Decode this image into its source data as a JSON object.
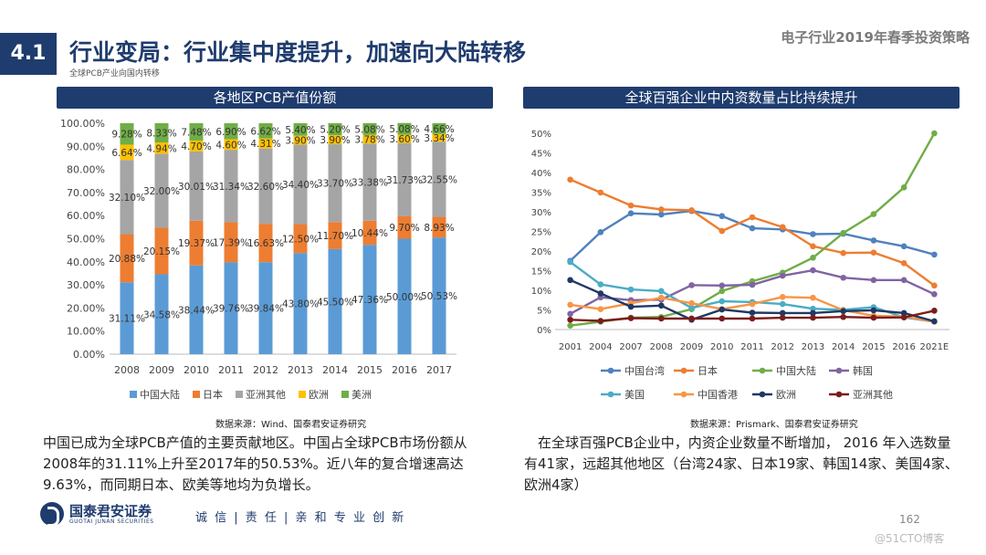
{
  "header": {
    "section": "4.1",
    "title": "行业变局：行业集中度提升，加速向大陆转移",
    "subtitle": "全球PCB产业向国内转移",
    "report": "电子行业2019年春季投资策略"
  },
  "colors": {
    "brand": "#1f3c6e",
    "cn_mainland": "#5b9bd5",
    "japan": "#ed7d31",
    "other_asia": "#a5a5a5",
    "europe": "#ffc000",
    "america": "#70ad47",
    "taiwan": "#4f81bd",
    "korea": "#8064a2",
    "usa_line": "#4bacc6",
    "hk": "#f79646",
    "eu_line": "#1f3864",
    "other_asia_line": "#7b1c1c"
  },
  "left": {
    "banner": "各地区PCB产值份额",
    "source": "数据来源：Wind、国泰君安证券研究",
    "paragraph": "中国已成为全球PCB产值的主要贡献地区。中国占全球PCB市场份额从2008年的31.11%上升至2017年的50.53%。近八年的复合增速高达9.63%，而同期日本、欧美等地均为负增长。"
  },
  "right": {
    "banner": "全球百强企业中内资数量占比持续提升",
    "source": "数据来源：Prismark、国泰君安证券研究",
    "paragraph": "在全球百强PCB企业中，内资企业数量不断增加， 2016 年入选数量有41家，远超其他地区（台湾24家、日本19家、韩国14家、美国4家、欧洲4家）"
  },
  "footer": {
    "logo_cn": "国泰君安证券",
    "logo_en": "GUOTAI JUNAN SECURITIES",
    "slogan": "诚 信 | 责 任 | 亲 和   专 业   创 新",
    "page": "162",
    "watermark": "@51CTO博客"
  },
  "chart_data": [
    {
      "type": "bar",
      "stacked": true,
      "categories": [
        "2008",
        "2009",
        "2010",
        "2011",
        "2012",
        "2013",
        "2014",
        "2015",
        "2016",
        "2017"
      ],
      "ylim": [
        0,
        100
      ],
      "yticks": [
        "0.00%",
        "10.00%",
        "20.00%",
        "30.00%",
        "40.00%",
        "50.00%",
        "60.00%",
        "70.00%",
        "80.00%",
        "90.00%",
        "100.00%"
      ],
      "series": [
        {
          "name": "中国大陆",
          "values": [
            31.11,
            34.58,
            38.44,
            39.76,
            39.84,
            43.8,
            45.5,
            47.36,
            50.0,
            50.53
          ],
          "labels": [
            "31.11%",
            "34.58%",
            "38.44%",
            "39.76%",
            "39.84%",
            "43.80%",
            "45.50%",
            "47.36%",
            "50.00%",
            "50.53%"
          ]
        },
        {
          "name": "日本",
          "values": [
            20.88,
            20.15,
            19.37,
            17.39,
            16.63,
            12.5,
            11.7,
            10.44,
            9.7,
            8.93
          ],
          "labels": [
            "20.88%",
            "20.15%",
            "19.37%",
            "17.39%",
            "16.63%",
            "12.50%",
            "11.70%",
            "10.44%",
            "9.70%",
            "8.93%"
          ]
        },
        {
          "name": "亚洲其他",
          "values": [
            32.1,
            32.0,
            30.01,
            31.34,
            32.6,
            34.4,
            33.7,
            33.38,
            31.73,
            32.55
          ],
          "labels": [
            "32.10%",
            "32.00%",
            "30.01%",
            "31.34%",
            "32.60%",
            "34.40%",
            "33.70%",
            "33.38%",
            "31.73%",
            "32.55%"
          ]
        },
        {
          "name": "欧洲",
          "values": [
            6.64,
            4.94,
            4.7,
            4.6,
            4.31,
            3.9,
            3.9,
            3.78,
            3.6,
            3.34
          ],
          "labels": [
            "6.64%",
            "4.94%",
            "4.70%",
            "4.60%",
            "4.31%",
            "3.90%",
            "3.90%",
            "3.78%",
            "3.60%",
            "3.34%"
          ]
        },
        {
          "name": "美洲",
          "values": [
            9.28,
            8.33,
            7.48,
            6.9,
            6.62,
            5.4,
            5.2,
            5.08,
            5.08,
            4.66
          ],
          "labels": [
            "9.28%",
            "8.33%",
            "7.48%",
            "6.90%",
            "6.62%",
            "5.40%",
            "5.20%",
            "5.08%",
            "5.08%",
            "4.66%"
          ]
        }
      ],
      "legend_position": "bottom"
    },
    {
      "type": "line",
      "categories": [
        "2001",
        "2004",
        "2007",
        "2008",
        "2009",
        "2010",
        "2011",
        "2012",
        "2013",
        "2014",
        "2015",
        "2016",
        "2021E"
      ],
      "ylim": [
        0,
        50
      ],
      "yticks": [
        "0%",
        "5%",
        "10%",
        "15%",
        "20%",
        "25%",
        "30%",
        "35%",
        "40%",
        "45%",
        "50%"
      ],
      "series": [
        {
          "name": "中国台湾",
          "values": [
            17.5,
            24.8,
            29.6,
            29.3,
            30.2,
            28.9,
            25.8,
            25.5,
            24.3,
            24.4,
            22.7,
            21.2,
            19.1
          ]
        },
        {
          "name": "日本",
          "values": [
            38.2,
            34.9,
            31.6,
            30.6,
            30.4,
            25.1,
            28.6,
            26.1,
            21.2,
            19.5,
            19.6,
            16.9,
            11.2
          ]
        },
        {
          "name": "中国大陆",
          "values": [
            1.0,
            2.0,
            3.0,
            3.2,
            5.2,
            9.8,
            12.3,
            14.5,
            18.3,
            24.6,
            29.4,
            36.2,
            50.0
          ]
        },
        {
          "name": "韩国",
          "values": [
            4.0,
            8.2,
            7.5,
            7.6,
            11.3,
            11.2,
            11.4,
            13.7,
            15.1,
            13.2,
            12.6,
            12.6,
            9.0
          ]
        },
        {
          "name": "美国",
          "values": [
            17.2,
            11.5,
            10.2,
            9.8,
            5.5,
            7.2,
            7.0,
            6.5,
            5.3,
            5.0,
            5.7,
            3.1,
            2.0
          ]
        },
        {
          "name": "中国香港",
          "values": [
            6.3,
            5.2,
            6.7,
            8.1,
            6.7,
            5.2,
            6.5,
            8.3,
            8.1,
            4.9,
            3.5,
            3.3,
            2.0
          ]
        },
        {
          "name": "欧洲",
          "values": [
            12.6,
            9.2,
            5.8,
            6.1,
            2.5,
            5.1,
            4.3,
            4.2,
            4.2,
            4.7,
            4.9,
            4.2,
            2.1
          ]
        },
        {
          "name": "亚洲其他",
          "values": [
            2.5,
            2.2,
            2.9,
            2.8,
            2.8,
            2.8,
            2.8,
            3.0,
            3.0,
            3.2,
            3.0,
            3.1,
            4.8
          ]
        }
      ],
      "legend_position": "bottom"
    }
  ]
}
